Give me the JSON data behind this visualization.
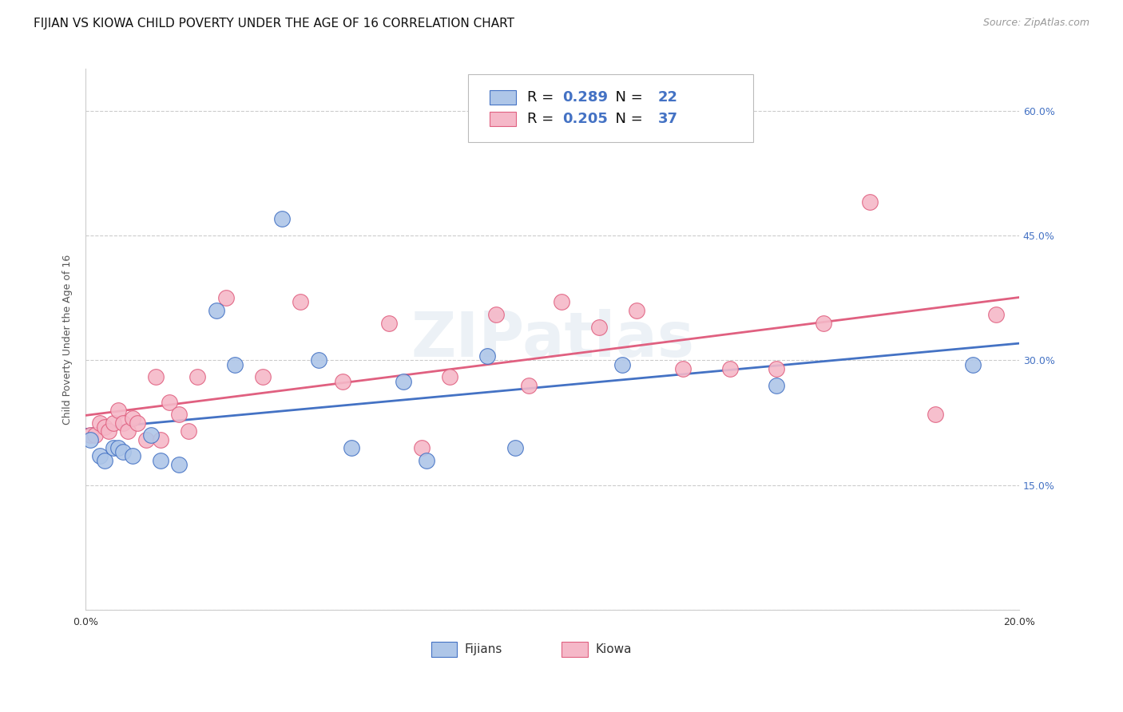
{
  "title": "FIJIAN VS KIOWA CHILD POVERTY UNDER THE AGE OF 16 CORRELATION CHART",
  "source": "Source: ZipAtlas.com",
  "ylabel": "Child Poverty Under the Age of 16",
  "xlim": [
    0.0,
    0.2
  ],
  "ylim": [
    0.0,
    0.65
  ],
  "x_ticks": [
    0.0,
    0.04,
    0.08,
    0.12,
    0.16,
    0.2
  ],
  "y_ticks": [
    0.0,
    0.15,
    0.3,
    0.45,
    0.6
  ],
  "y_tick_labels_right": [
    "",
    "15.0%",
    "30.0%",
    "45.0%",
    "60.0%"
  ],
  "grid_color": "#cccccc",
  "background_color": "#ffffff",
  "fijian_color": "#aec6e8",
  "kiowa_color": "#f5b8c8",
  "fijian_line_color": "#4472c4",
  "kiowa_line_color": "#e06080",
  "fijian_R": 0.289,
  "fijian_N": 22,
  "kiowa_R": 0.205,
  "kiowa_N": 37,
  "watermark": "ZIPatlas",
  "fijians_x": [
    0.001,
    0.003,
    0.004,
    0.006,
    0.007,
    0.008,
    0.01,
    0.014,
    0.016,
    0.02,
    0.028,
    0.032,
    0.042,
    0.05,
    0.057,
    0.068,
    0.073,
    0.086,
    0.092,
    0.115,
    0.148,
    0.19
  ],
  "fijians_y": [
    0.205,
    0.185,
    0.18,
    0.195,
    0.195,
    0.19,
    0.185,
    0.21,
    0.18,
    0.175,
    0.36,
    0.295,
    0.47,
    0.3,
    0.195,
    0.275,
    0.18,
    0.305,
    0.195,
    0.295,
    0.27,
    0.295
  ],
  "kiowa_x": [
    0.001,
    0.002,
    0.003,
    0.004,
    0.005,
    0.006,
    0.007,
    0.008,
    0.009,
    0.01,
    0.011,
    0.013,
    0.015,
    0.016,
    0.018,
    0.02,
    0.022,
    0.024,
    0.03,
    0.038,
    0.046,
    0.055,
    0.065,
    0.072,
    0.078,
    0.088,
    0.095,
    0.102,
    0.11,
    0.118,
    0.128,
    0.138,
    0.148,
    0.158,
    0.168,
    0.182,
    0.195
  ],
  "kiowa_y": [
    0.21,
    0.21,
    0.225,
    0.22,
    0.215,
    0.225,
    0.24,
    0.225,
    0.215,
    0.23,
    0.225,
    0.205,
    0.28,
    0.205,
    0.25,
    0.235,
    0.215,
    0.28,
    0.375,
    0.28,
    0.37,
    0.275,
    0.345,
    0.195,
    0.28,
    0.355,
    0.27,
    0.37,
    0.34,
    0.36,
    0.29,
    0.29,
    0.29,
    0.345,
    0.49,
    0.235,
    0.355
  ],
  "title_fontsize": 11,
  "source_fontsize": 9,
  "axis_label_fontsize": 9,
  "tick_fontsize": 9,
  "legend_fontsize": 13
}
